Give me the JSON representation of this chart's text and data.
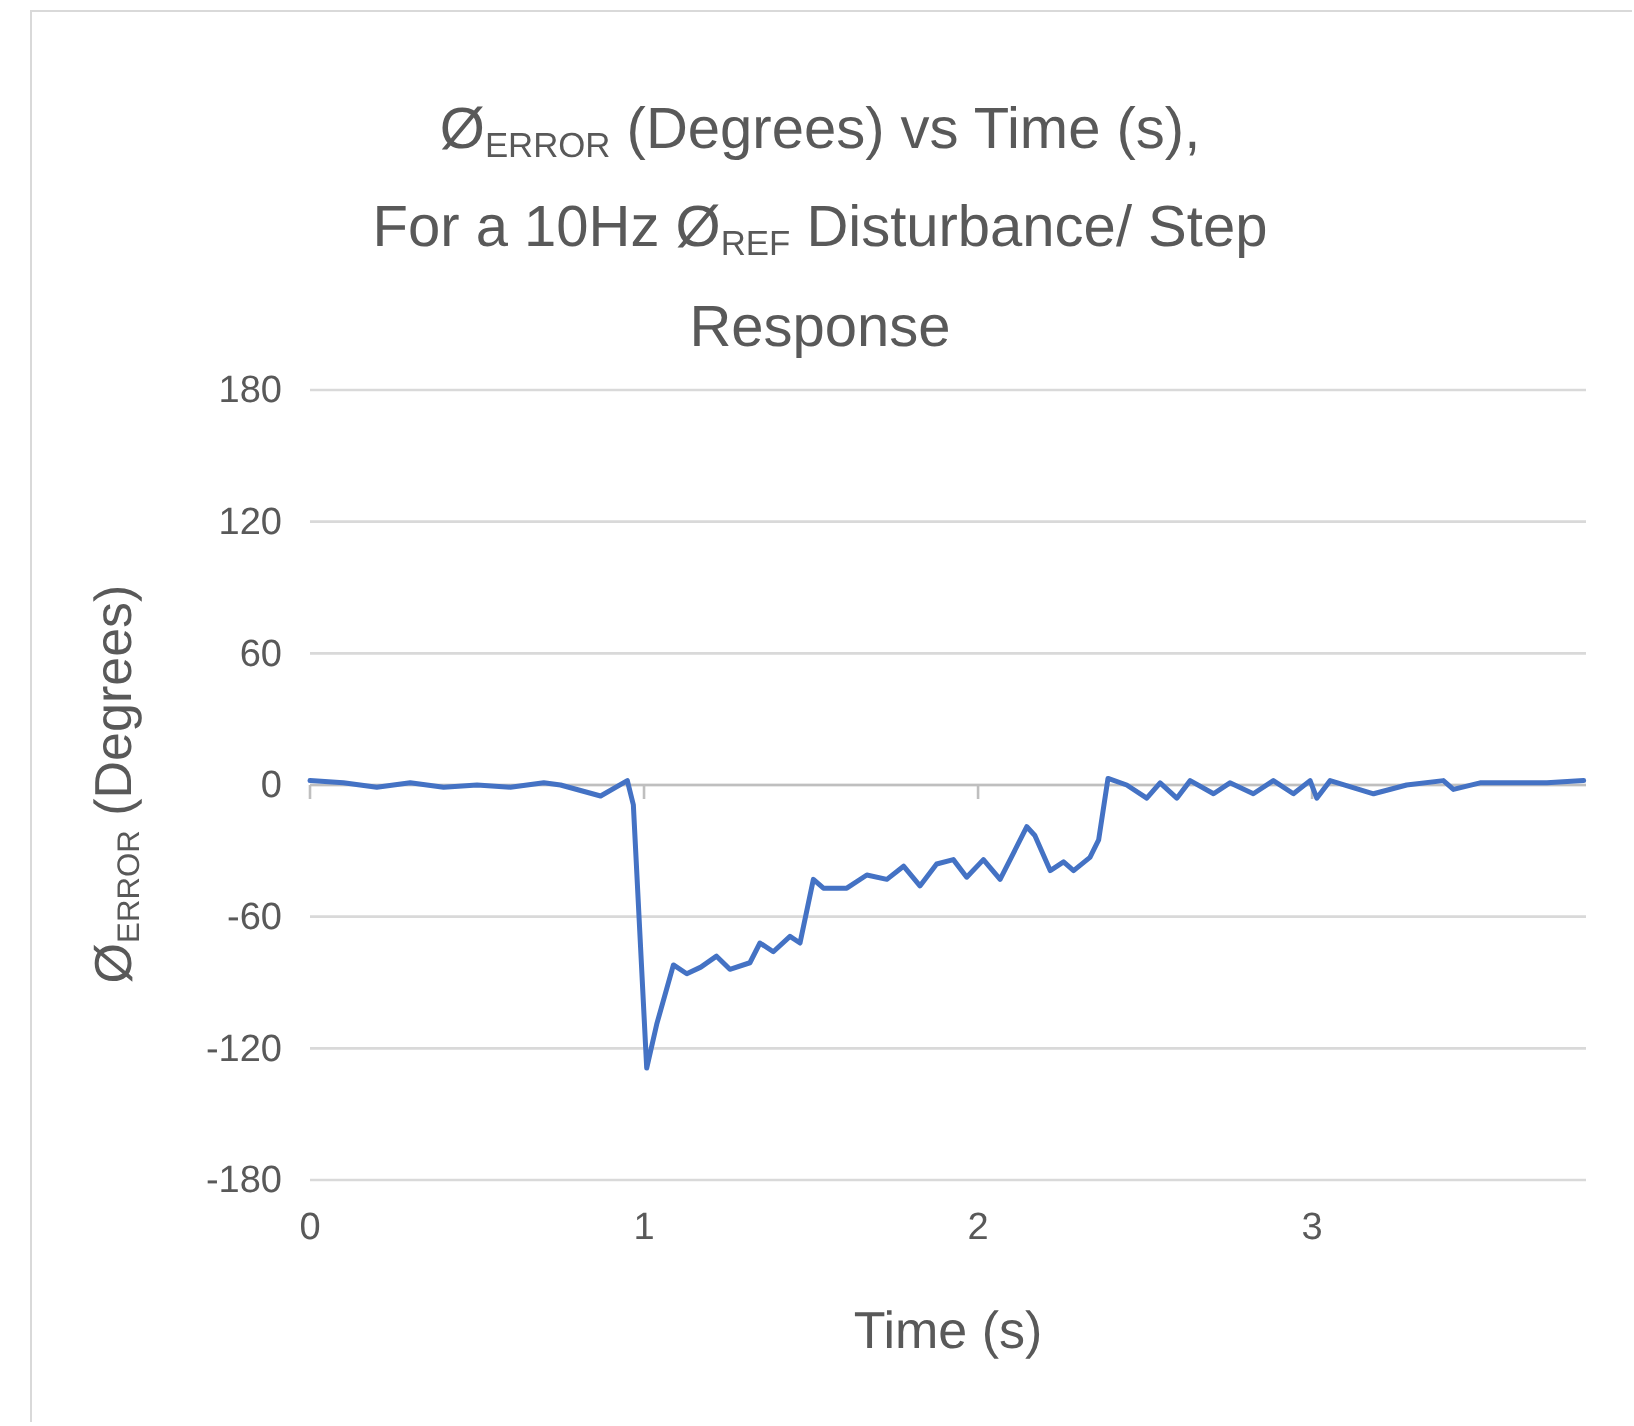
{
  "chart_data": {
    "type": "line",
    "title": "Ø$_{ERROR}$ (Degrees) vs Time (s),\nFor a 10Hz Ø$_{REF}$  Disturbance/ Step Response",
    "xlabel": "Time (s)",
    "ylabel": "Ø$_{ERROR}$ (Degrees)",
    "xlim": [
      0,
      3.82
    ],
    "xticks": [
      0,
      1,
      2,
      3
    ],
    "ylim": [
      -180,
      180
    ],
    "yticks": [
      -180,
      -120,
      -60,
      0,
      60,
      120,
      180
    ],
    "grid": "y",
    "marker": "none",
    "line_style": "solid",
    "series": [
      {
        "color": "#4472c4",
        "x": [
          0,
          0.1,
          0.2,
          0.3,
          0.4,
          0.5,
          0.6,
          0.7,
          0.75,
          0.87,
          0.95,
          0.968,
          1.008,
          1.038,
          1.088,
          1.128,
          1.17,
          1.217,
          1.257,
          1.317,
          1.347,
          1.387,
          1.437,
          1.467,
          1.507,
          1.537,
          1.607,
          1.667,
          1.727,
          1.777,
          1.826,
          1.876,
          1.926,
          1.966,
          2.016,
          2.066,
          2.106,
          2.146,
          2.17,
          2.216,
          2.256,
          2.286,
          2.335,
          2.361,
          2.389,
          2.445,
          2.505,
          2.545,
          2.595,
          2.635,
          2.705,
          2.754,
          2.824,
          2.884,
          2.944,
          2.994,
          3.014,
          3.054,
          3.184,
          3.283,
          3.393,
          3.423,
          3.503,
          3.703,
          3.813
        ],
        "values": [
          2,
          1,
          -1,
          1,
          -1,
          0,
          -1,
          1,
          0,
          -5,
          2,
          -9,
          -129,
          -109,
          -82,
          -86,
          -83,
          -78,
          -84,
          -81,
          -72,
          -76,
          -69,
          -72,
          -43,
          -47,
          -47,
          -41,
          -43,
          -37,
          -46,
          -36,
          -34,
          -42,
          -34,
          -43,
          -31,
          -19,
          -23,
          -39,
          -35,
          -39,
          -33,
          -25,
          3,
          0,
          -6,
          1,
          -6,
          2,
          -4,
          1,
          -4,
          2,
          -4,
          2,
          -6,
          2,
          -4,
          0,
          2,
          -2,
          1,
          1,
          2
        ]
      }
    ]
  }
}
